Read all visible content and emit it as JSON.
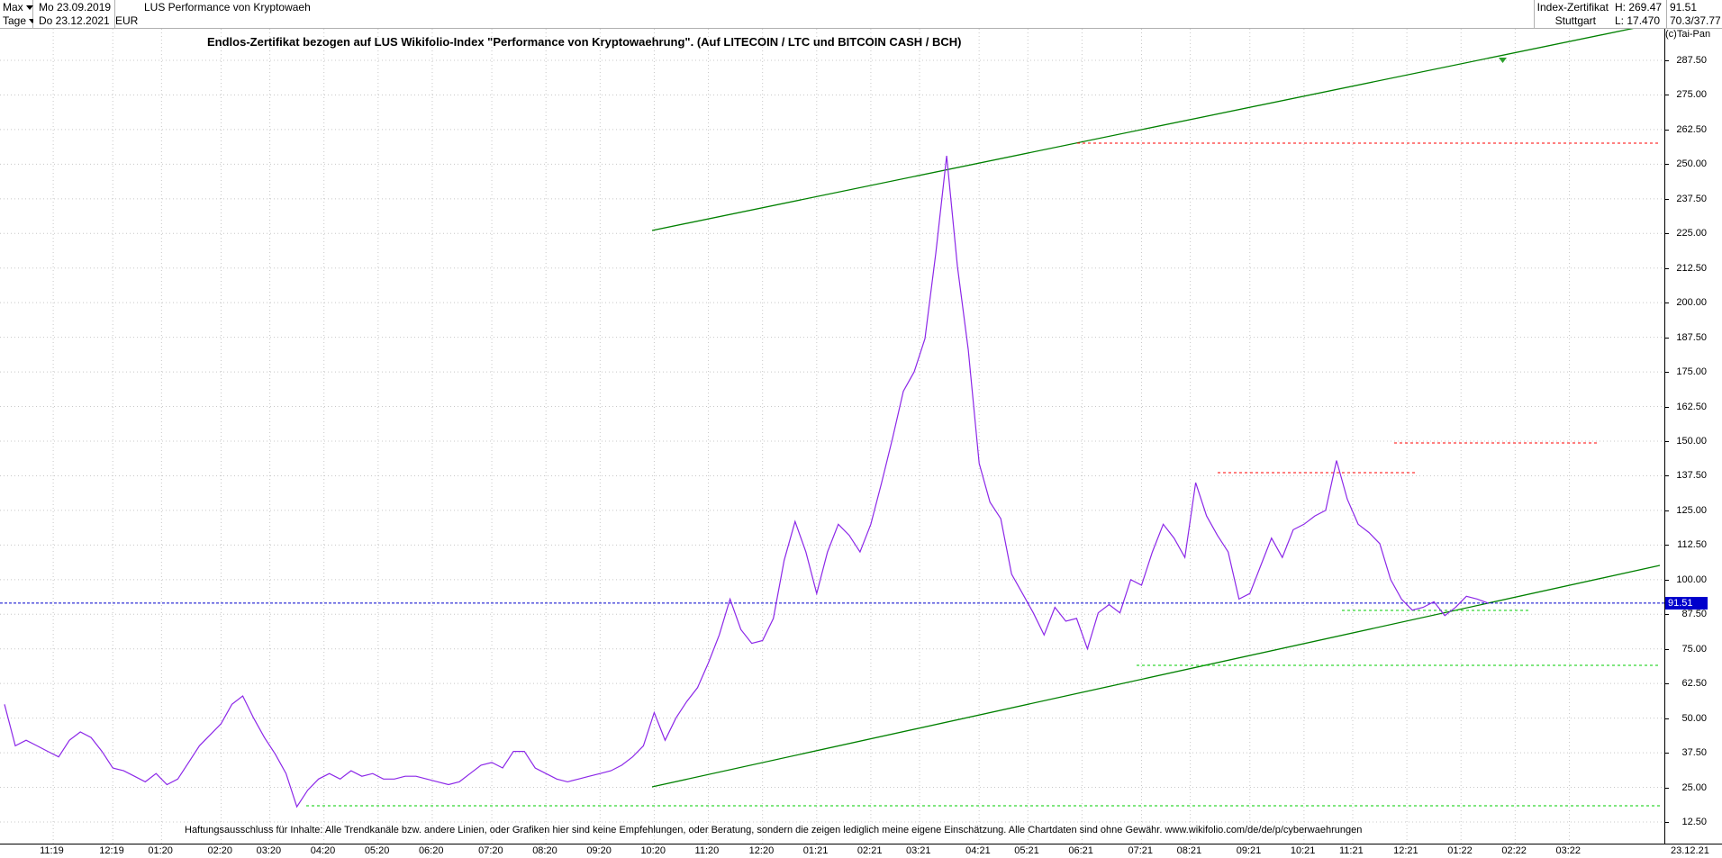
{
  "header": {
    "range_select": "Max",
    "interval_select": "Tage",
    "start_date": "Mo 23.09.2019",
    "end_date": "Do 23.12.2021",
    "instrument_name": "LUS Performance von Kryptowaeh",
    "currency": "EUR",
    "instrument_type": "Index-Zertifikat",
    "exchange": "Stuttgart",
    "high": "H: 269.47",
    "low": "L: 17.470",
    "last": "91.51",
    "range": "70.3/37.77"
  },
  "copyright": "(c)Tai-Pan",
  "colors": {
    "series": "#8c28e8",
    "trend": "#008000",
    "resistance": "#ff0000",
    "support": "#00cc00",
    "price_line": "#0000cc"
  },
  "chart_data": {
    "type": "line",
    "title": "Endlos-Zertifikat bezogen auf LUS Wikifolio-Index \"Performance von Kryptowaehrung\". (Auf LITECOIN / LTC und BITCOIN CASH / BCH)",
    "footnote": "Haftungsausschluss für Inhalte: Alle Trendkanäle bzw. andere Linien, oder Grafiken hier sind keine Empfehlungen, oder Beratung, sondern die zeigen lediglich meine eigene Einschätzung. Alle Chartdaten sind ohne Gewähr.  www.wikifolio.com/de/de/p/cyberwaehrungen",
    "ylim": [
      5,
      302
    ],
    "xlim": [
      0,
      27.5
    ],
    "y_ticks": [
      12.5,
      25.0,
      37.5,
      50.0,
      62.5,
      75.0,
      87.5,
      100.0,
      112.5,
      125.0,
      137.5,
      150.0,
      162.5,
      175.0,
      187.5,
      200.0,
      212.5,
      225.0,
      237.5,
      250.0,
      262.5,
      275.0,
      287.5
    ],
    "y_tick_labels": [
      "12.50",
      "25.00",
      "37.50",
      "50.00",
      "62.50",
      "75.00",
      "87.50",
      "100.00",
      "112.50",
      "125.00",
      "137.50",
      "150.00",
      "162.50",
      "175.00",
      "187.50",
      "200.00",
      "212.50",
      "225.00",
      "237.50",
      "250.00",
      "262.50",
      "275.00",
      "287.50"
    ],
    "x_ticks": [
      0.9,
      2.0,
      2.9,
      4.0,
      4.9,
      5.9,
      6.9,
      7.9,
      9.0,
      10.0,
      11.0,
      12.0,
      13.0,
      14.0,
      15.0,
      16.0,
      16.9,
      18.0,
      18.9,
      19.9,
      21.0,
      21.9,
      23.0,
      24.0,
      24.9,
      25.9,
      26.9
    ],
    "x_tick_labels": [
      "11:19",
      "12:19",
      "01:20",
      "02:20",
      "03:20",
      "04:20",
      "05:20",
      "06:20",
      "07:20",
      "08:20",
      "09:20",
      "10:20",
      "11:20",
      "12:20",
      "01:21",
      "02:21",
      "03:21",
      "04:21",
      "05:21",
      "06:21",
      "07:21",
      "08:21",
      "09:21",
      "10:21",
      "11:21",
      "12:21",
      "01:22"
    ],
    "x_end_label": "23.12.21",
    "extra_x_labels": [
      "02:22",
      "03:22"
    ],
    "last_value_label": "91.51",
    "series": [
      {
        "x": [
          0.0,
          0.2,
          0.4,
          0.6,
          0.8,
          1.0,
          1.2,
          1.4,
          1.6,
          1.8,
          2.0,
          2.2,
          2.4,
          2.6,
          2.8,
          3.0,
          3.2,
          3.4,
          3.6,
          3.8,
          4.0,
          4.2,
          4.4,
          4.6,
          4.8,
          5.0,
          5.2,
          5.4,
          5.6,
          5.8,
          6.0,
          6.2,
          6.4,
          6.6,
          6.8,
          7.0,
          7.2,
          7.4,
          7.6,
          7.8,
          8.0,
          8.2,
          8.4,
          8.6,
          8.8,
          9.0,
          9.2,
          9.4,
          9.6,
          9.8,
          10.0,
          10.2,
          10.4,
          10.6,
          10.8,
          11.0,
          11.2,
          11.4,
          11.6,
          11.8,
          12.0,
          12.2,
          12.4,
          12.6,
          12.8,
          13.0,
          13.2,
          13.4,
          13.6,
          13.8,
          14.0,
          14.2,
          14.4,
          14.6,
          14.8,
          15.0,
          15.2,
          15.4,
          15.6,
          15.8,
          16.0,
          16.2,
          16.4,
          16.6,
          16.8,
          17.0,
          17.2,
          17.4,
          17.6,
          17.8,
          18.0,
          18.2,
          18.4,
          18.6,
          18.8,
          19.0,
          19.2,
          19.4,
          19.6,
          19.8,
          20.0,
          20.2,
          20.4,
          20.6,
          20.8,
          21.0,
          21.2,
          21.4,
          21.6,
          21.8,
          22.0,
          22.2,
          22.4,
          22.6,
          22.8,
          23.0,
          23.2,
          23.4,
          23.6,
          23.8,
          24.0,
          24.2,
          24.4,
          24.6,
          24.8,
          25.0,
          25.2,
          25.4,
          25.6,
          25.8,
          26.0,
          26.2,
          26.4,
          26.6,
          26.8,
          27.0,
          27.2,
          27.4
        ],
        "y": [
          55,
          40,
          42,
          40,
          38,
          36,
          42,
          45,
          43,
          38,
          32,
          31,
          29,
          27,
          30,
          26,
          28,
          34,
          40,
          44,
          48,
          55,
          58,
          50,
          43,
          37,
          30,
          18,
          24,
          28,
          30,
          28,
          31,
          29,
          30,
          28,
          28,
          29,
          29,
          28,
          27,
          26,
          27,
          30,
          33,
          34,
          32,
          38,
          38,
          32,
          30,
          28,
          27,
          28,
          29,
          30,
          31,
          33,
          36,
          40,
          52,
          42,
          50,
          56,
          61,
          70,
          80,
          93,
          82,
          77,
          78,
          86,
          107,
          121,
          110,
          95,
          110,
          120,
          116,
          110,
          120,
          135,
          151,
          168,
          175,
          187,
          218,
          253,
          213,
          183,
          142,
          128,
          122,
          102,
          95,
          88,
          80,
          90,
          85,
          86,
          75,
          88,
          91,
          88,
          100,
          98,
          110,
          120,
          115,
          108,
          135,
          123,
          116,
          110,
          93,
          95,
          105,
          115,
          108,
          118,
          120,
          123,
          125,
          143,
          129,
          120,
          117,
          113,
          100,
          93,
          89,
          90,
          92,
          87,
          90,
          94,
          93,
          91.51
        ],
        "_note": "see script"
      }
    ]
  }
}
